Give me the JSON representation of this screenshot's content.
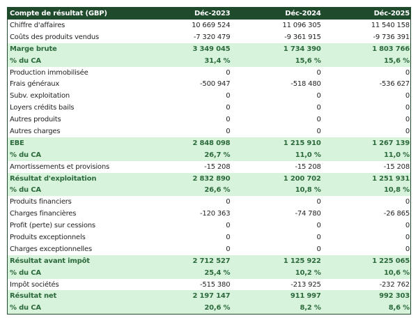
{
  "header": {
    "title": "Compte de résultat (GBP)",
    "columns": [
      "Déc-2023",
      "Déc-2024",
      "Déc-2025"
    ]
  },
  "colors": {
    "header_bg": "#1f4a2c",
    "highlight_bg": "#d8f3dc",
    "highlight_text": "#2c6a3c"
  },
  "rows": [
    {
      "label": "Chiffre d'affaires",
      "values": [
        "10 669 524",
        "11 096 305",
        "11 540 158"
      ],
      "highlight": false
    },
    {
      "label": "Coûts des produits vendus",
      "values": [
        "-7 320 479",
        "-9 361 915",
        "-9 736 391"
      ],
      "highlight": false
    },
    {
      "label": "Marge brute",
      "values": [
        "3 349 045",
        "1 734 390",
        "1 803 766"
      ],
      "highlight": true
    },
    {
      "label": "% du CA",
      "values": [
        "31,4 %",
        "15,6 %",
        "15,6 %"
      ],
      "highlight": true
    },
    {
      "label": "Production immobilisée",
      "values": [
        "0",
        "0",
        "0"
      ],
      "highlight": false
    },
    {
      "label": "Frais généraux",
      "values": [
        "-500 947",
        "-518 480",
        "-536 627"
      ],
      "highlight": false
    },
    {
      "label": "Subv. exploitation",
      "values": [
        "0",
        "0",
        "0"
      ],
      "highlight": false
    },
    {
      "label": "Loyers crédits bails",
      "values": [
        "0",
        "0",
        "0"
      ],
      "highlight": false
    },
    {
      "label": "Autres produits",
      "values": [
        "0",
        "0",
        "0"
      ],
      "highlight": false
    },
    {
      "label": "Autres charges",
      "values": [
        "0",
        "0",
        "0"
      ],
      "highlight": false
    },
    {
      "label": "EBE",
      "values": [
        "2 848 098",
        "1 215 910",
        "1 267 139"
      ],
      "highlight": true
    },
    {
      "label": "% du CA",
      "values": [
        "26,7 %",
        "11,0 %",
        "11,0 %"
      ],
      "highlight": true
    },
    {
      "label": "Amortissements et provisions",
      "values": [
        "-15 208",
        "-15 208",
        "-15 208"
      ],
      "highlight": false
    },
    {
      "label": "Résultat d'exploitation",
      "values": [
        "2 832 890",
        "1 200 702",
        "1 251 931"
      ],
      "highlight": true
    },
    {
      "label": "% du CA",
      "values": [
        "26,6 %",
        "10,8 %",
        "10,8 %"
      ],
      "highlight": true
    },
    {
      "label": "Produits financiers",
      "values": [
        "0",
        "0",
        "0"
      ],
      "highlight": false
    },
    {
      "label": "Charges financières",
      "values": [
        "-120 363",
        "-74 780",
        "-26 865"
      ],
      "highlight": false
    },
    {
      "label": "Profit (perte) sur cessions",
      "values": [
        "0",
        "0",
        "0"
      ],
      "highlight": false
    },
    {
      "label": "Produits exceptionnels",
      "values": [
        "0",
        "0",
        "0"
      ],
      "highlight": false
    },
    {
      "label": "Charges exceptionnelles",
      "values": [
        "0",
        "0",
        "0"
      ],
      "highlight": false
    },
    {
      "label": "Résultat avant impôt",
      "values": [
        "2 712 527",
        "1 125 922",
        "1 225 065"
      ],
      "highlight": true
    },
    {
      "label": "% du CA",
      "values": [
        "25,4 %",
        "10,2 %",
        "10,6 %"
      ],
      "highlight": true
    },
    {
      "label": "Impôt sociétés",
      "values": [
        "-515 380",
        "-213 925",
        "-232 762"
      ],
      "highlight": false
    },
    {
      "label": "Résultat net",
      "values": [
        "2 197 147",
        "911 997",
        "992 303"
      ],
      "highlight": true
    },
    {
      "label": "% du CA",
      "values": [
        "20,6 %",
        "8,2 %",
        "8,6 %"
      ],
      "highlight": true
    }
  ]
}
